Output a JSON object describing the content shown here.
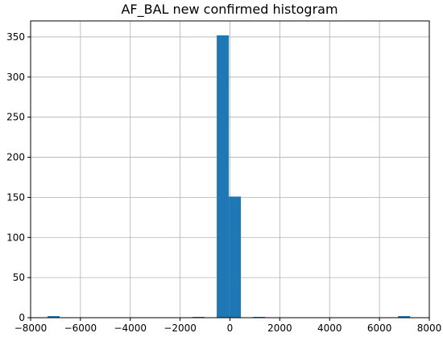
{
  "chart_data": {
    "type": "bar",
    "title": "AF_BAL new confirmed histogram",
    "xlabel": "",
    "ylabel": "",
    "xlim": [
      -8000,
      8000
    ],
    "ylim": [
      0,
      370
    ],
    "grid": true,
    "bar_color": "#1f77b4",
    "bin_width": 485,
    "bins": [
      {
        "x0": -7320,
        "x1": -6835,
        "count": 2
      },
      {
        "x0": -1500,
        "x1": -1015,
        "count": 1
      },
      {
        "x0": -530,
        "x1": -45,
        "count": 352
      },
      {
        "x0": -45,
        "x1": 440,
        "count": 151
      },
      {
        "x0": 925,
        "x1": 1410,
        "count": 1
      },
      {
        "x0": 6745,
        "x1": 7230,
        "count": 2
      }
    ],
    "x_ticks": [
      {
        "value": -8000,
        "label": "−8000"
      },
      {
        "value": -6000,
        "label": "−6000"
      },
      {
        "value": -4000,
        "label": "−4000"
      },
      {
        "value": -2000,
        "label": "−2000"
      },
      {
        "value": 0,
        "label": "0"
      },
      {
        "value": 2000,
        "label": "2000"
      },
      {
        "value": 4000,
        "label": "4000"
      },
      {
        "value": 6000,
        "label": "6000"
      },
      {
        "value": 8000,
        "label": "8000"
      }
    ],
    "y_ticks": [
      {
        "value": 0,
        "label": "0"
      },
      {
        "value": 50,
        "label": "50"
      },
      {
        "value": 100,
        "label": "100"
      },
      {
        "value": 150,
        "label": "150"
      },
      {
        "value": 200,
        "label": "200"
      },
      {
        "value": 250,
        "label": "250"
      },
      {
        "value": 300,
        "label": "300"
      },
      {
        "value": 350,
        "label": "350"
      }
    ]
  }
}
